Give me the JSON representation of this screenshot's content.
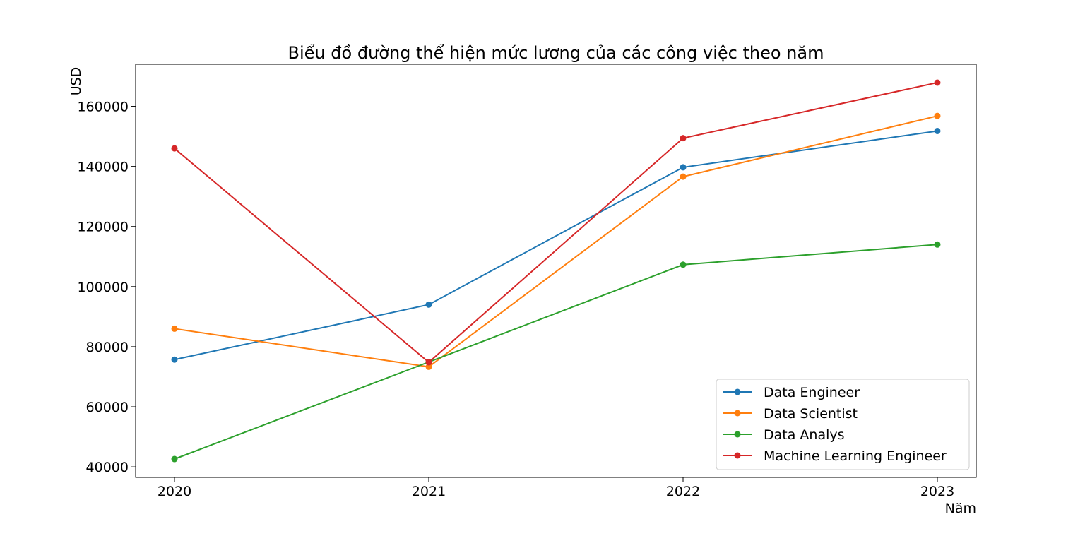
{
  "chart_data": {
    "type": "line",
    "title": "Biểu đồ đường thể hiện mức lương của các công việc theo năm",
    "xlabel": "Năm",
    "ylabel": "USD",
    "categories": [
      "2020",
      "2021",
      "2022",
      "2023"
    ],
    "y_ticks": [
      "40000",
      "60000",
      "80000",
      "100000",
      "120000",
      "140000",
      "160000"
    ],
    "y_tick_values": [
      40000,
      60000,
      80000,
      100000,
      120000,
      140000,
      160000
    ],
    "ylim": [
      36500,
      174000
    ],
    "legend_position": "lower-right",
    "series": [
      {
        "name": "Data Engineer",
        "color": "#1f77b4",
        "values": [
          75700,
          94000,
          139700,
          151800
        ]
      },
      {
        "name": "Data Scientist",
        "color": "#ff7f0e",
        "values": [
          86000,
          73300,
          136600,
          156800
        ]
      },
      {
        "name": "Data Analys",
        "color": "#2ca02c",
        "values": [
          42600,
          74900,
          107300,
          114000
        ]
      },
      {
        "name": "Machine Learning Engineer",
        "color": "#d62728",
        "values": [
          146000,
          74800,
          149400,
          167900
        ]
      }
    ]
  }
}
